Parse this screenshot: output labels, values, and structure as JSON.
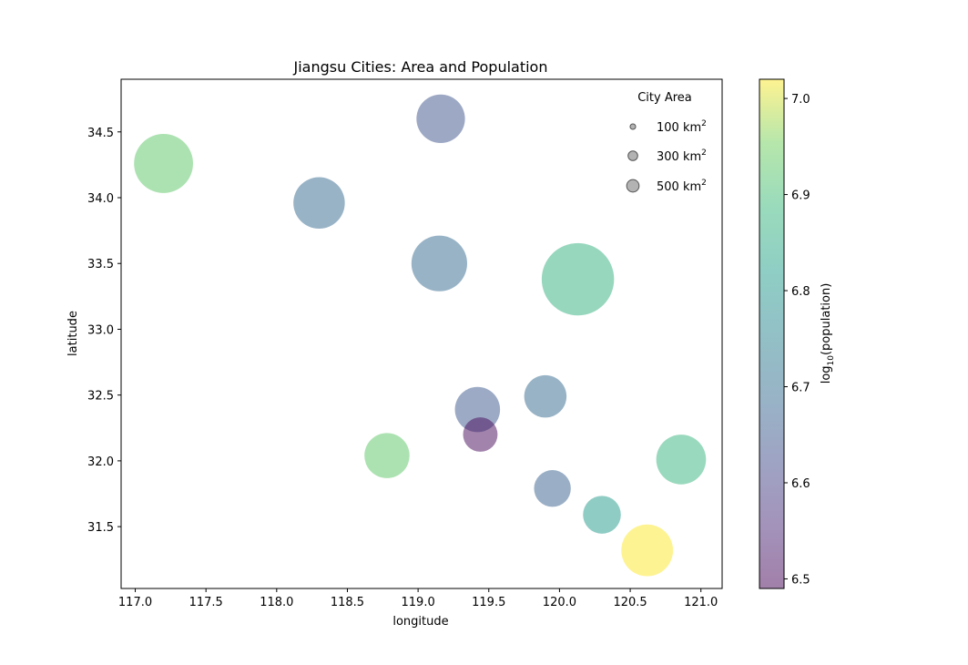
{
  "chart_data": {
    "type": "scatter",
    "title": "Jiangsu Cities: Area and Population",
    "xlabel": "longitude",
    "ylabel": "latitude",
    "xlim": [
      116.9,
      121.15
    ],
    "ylim": [
      31.03,
      34.9
    ],
    "xticks": [
      {
        "value": 117.0,
        "label": "117.0"
      },
      {
        "value": 117.5,
        "label": "117.5"
      },
      {
        "value": 118.0,
        "label": "118.0"
      },
      {
        "value": 118.5,
        "label": "118.5"
      },
      {
        "value": 119.0,
        "label": "119.0"
      },
      {
        "value": 119.5,
        "label": "119.5"
      },
      {
        "value": 120.0,
        "label": "120.0"
      },
      {
        "value": 120.5,
        "label": "120.5"
      },
      {
        "value": 121.0,
        "label": "121.0"
      }
    ],
    "yticks": [
      {
        "value": 31.5,
        "label": "31.5"
      },
      {
        "value": 32.0,
        "label": "32.0"
      },
      {
        "value": 32.5,
        "label": "32.5"
      },
      {
        "value": 33.0,
        "label": "33.0"
      },
      {
        "value": 33.5,
        "label": "33.5"
      },
      {
        "value": 34.0,
        "label": "34.0"
      },
      {
        "value": 34.5,
        "label": "34.5"
      }
    ],
    "points": [
      {
        "lon": 117.2,
        "lat": 34.26,
        "area": 11259,
        "log_population": 6.93
      },
      {
        "lon": 119.16,
        "lat": 34.6,
        "area": 7615,
        "log_population": 6.64
      },
      {
        "lon": 118.3,
        "lat": 33.96,
        "area": 8555,
        "log_population": 6.69
      },
      {
        "lon": 119.15,
        "lat": 33.5,
        "area": 10030,
        "log_population": 6.69
      },
      {
        "lon": 120.13,
        "lat": 33.38,
        "area": 16931,
        "log_population": 6.87
      },
      {
        "lon": 119.42,
        "lat": 32.39,
        "area": 6591,
        "log_population": 6.65
      },
      {
        "lon": 119.9,
        "lat": 32.49,
        "area": 5787,
        "log_population": 6.69
      },
      {
        "lon": 119.44,
        "lat": 32.2,
        "area": 3847,
        "log_population": 6.5
      },
      {
        "lon": 118.78,
        "lat": 32.04,
        "area": 6587,
        "log_population": 6.93
      },
      {
        "lon": 120.86,
        "lat": 32.01,
        "area": 8001,
        "log_population": 6.88
      },
      {
        "lon": 119.95,
        "lat": 31.79,
        "area": 4372,
        "log_population": 6.67
      },
      {
        "lon": 120.3,
        "lat": 31.59,
        "area": 4627,
        "log_population": 6.81
      },
      {
        "lon": 120.62,
        "lat": 31.32,
        "area": 8657,
        "log_population": 7.02
      }
    ],
    "legend": {
      "title": "City Area",
      "placement": "top-right",
      "entries": [
        {
          "area": 100,
          "label": "100 km",
          "sup": "2"
        },
        {
          "area": 300,
          "label": "300 km",
          "sup": "2"
        },
        {
          "area": 500,
          "label": "500 km",
          "sup": "2"
        }
      ]
    },
    "colorbar": {
      "colormap": "viridis",
      "range": [
        6.49,
        7.02
      ],
      "label_main": "log",
      "label_sub": "10",
      "label_rest": "(population)",
      "ticks": [
        {
          "value": 6.5,
          "label": "6.5"
        },
        {
          "value": 6.6,
          "label": "6.6"
        },
        {
          "value": 6.7,
          "label": "6.7"
        },
        {
          "value": 6.8,
          "label": "6.8"
        },
        {
          "value": 6.9,
          "label": "6.9"
        },
        {
          "value": 7.0,
          "label": "7.0"
        }
      ]
    },
    "alpha": 0.5,
    "grid": false
  }
}
